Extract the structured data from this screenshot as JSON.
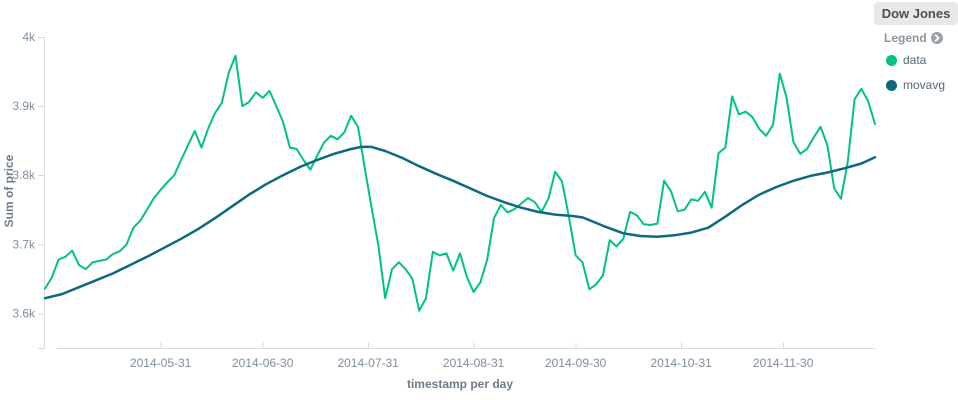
{
  "panel": {
    "title": "Dow Jones"
  },
  "legend": {
    "label": "Legend",
    "toggle_icon": "chevron-circle-right",
    "items": [
      {
        "label": "data",
        "color": "#00C383"
      },
      {
        "label": "movavg",
        "color": "#0C6A80"
      }
    ]
  },
  "chart_data": {
    "type": "line",
    "title": "Dow Jones",
    "xlabel": "timestamp per day",
    "ylabel": "Sum of price",
    "x_unit": "days since 2014-04-27, one point per day interval",
    "xlim": [
      0,
      244
    ],
    "x_tick_days": [
      34,
      64,
      95,
      126,
      156,
      187,
      217
    ],
    "x_tick_labels": [
      "2014-05-31",
      "2014-06-30",
      "2014-07-31",
      "2014-08-31",
      "2014-09-30",
      "2014-10-31",
      "2014-11-30"
    ],
    "y_tick_values": [
      4000,
      3900,
      3800,
      3700,
      3600
    ],
    "y_tick_labels": [
      "4k",
      "3.9k",
      "3.8k",
      "3.7k",
      "3.6k"
    ],
    "ylim": [
      3550,
      4000
    ],
    "grid": false,
    "legend_position": "right",
    "series": [
      {
        "name": "data",
        "color": "#00C383",
        "width": 2,
        "points": [
          [
            0,
            3636
          ],
          [
            2,
            3652
          ],
          [
            4,
            3678
          ],
          [
            6,
            3682
          ],
          [
            8,
            3691
          ],
          [
            10,
            3670
          ],
          [
            12,
            3664
          ],
          [
            14,
            3674
          ],
          [
            16,
            3676
          ],
          [
            18,
            3678
          ],
          [
            20,
            3686
          ],
          [
            22,
            3690
          ],
          [
            24,
            3700
          ],
          [
            26,
            3724
          ],
          [
            28,
            3734
          ],
          [
            30,
            3750
          ],
          [
            32,
            3767
          ],
          [
            34,
            3779
          ],
          [
            36,
            3790
          ],
          [
            38,
            3800
          ],
          [
            40,
            3822
          ],
          [
            42,
            3843
          ],
          [
            44,
            3864
          ],
          [
            46,
            3840
          ],
          [
            48,
            3868
          ],
          [
            50,
            3890
          ],
          [
            52,
            3905
          ],
          [
            54,
            3948
          ],
          [
            56,
            3973
          ],
          [
            58,
            3900
          ],
          [
            60,
            3906
          ],
          [
            62,
            3920
          ],
          [
            64,
            3912
          ],
          [
            66,
            3922
          ],
          [
            68,
            3900
          ],
          [
            70,
            3877
          ],
          [
            72,
            3840
          ],
          [
            74,
            3838
          ],
          [
            76,
            3822
          ],
          [
            78,
            3808
          ],
          [
            80,
            3828
          ],
          [
            82,
            3847
          ],
          [
            84,
            3857
          ],
          [
            86,
            3852
          ],
          [
            88,
            3862
          ],
          [
            90,
            3886
          ],
          [
            92,
            3870
          ],
          [
            94,
            3810
          ],
          [
            96,
            3753
          ],
          [
            98,
            3698
          ],
          [
            100,
            3622
          ],
          [
            102,
            3664
          ],
          [
            104,
            3674
          ],
          [
            106,
            3664
          ],
          [
            108,
            3650
          ],
          [
            110,
            3604
          ],
          [
            112,
            3622
          ],
          [
            114,
            3689
          ],
          [
            116,
            3684
          ],
          [
            118,
            3687
          ],
          [
            120,
            3662
          ],
          [
            122,
            3687
          ],
          [
            124,
            3653
          ],
          [
            126,
            3631
          ],
          [
            128,
            3645
          ],
          [
            130,
            3678
          ],
          [
            132,
            3738
          ],
          [
            134,
            3757
          ],
          [
            136,
            3746
          ],
          [
            138,
            3751
          ],
          [
            140,
            3759
          ],
          [
            142,
            3767
          ],
          [
            144,
            3761
          ],
          [
            146,
            3747
          ],
          [
            148,
            3766
          ],
          [
            150,
            3805
          ],
          [
            152,
            3791
          ],
          [
            154,
            3740
          ],
          [
            156,
            3684
          ],
          [
            158,
            3674
          ],
          [
            160,
            3635
          ],
          [
            162,
            3642
          ],
          [
            164,
            3655
          ],
          [
            166,
            3706
          ],
          [
            168,
            3697
          ],
          [
            170,
            3708
          ],
          [
            172,
            3747
          ],
          [
            174,
            3742
          ],
          [
            176,
            3729
          ],
          [
            178,
            3728
          ],
          [
            180,
            3730
          ],
          [
            182,
            3792
          ],
          [
            184,
            3777
          ],
          [
            186,
            3748
          ],
          [
            188,
            3750
          ],
          [
            190,
            3765
          ],
          [
            192,
            3763
          ],
          [
            194,
            3776
          ],
          [
            196,
            3753
          ],
          [
            198,
            3832
          ],
          [
            200,
            3840
          ],
          [
            202,
            3914
          ],
          [
            204,
            3888
          ],
          [
            206,
            3892
          ],
          [
            208,
            3884
          ],
          [
            210,
            3867
          ],
          [
            212,
            3857
          ],
          [
            214,
            3873
          ],
          [
            216,
            3947
          ],
          [
            218,
            3912
          ],
          [
            220,
            3848
          ],
          [
            222,
            3831
          ],
          [
            224,
            3838
          ],
          [
            226,
            3855
          ],
          [
            228,
            3870
          ],
          [
            230,
            3843
          ],
          [
            232,
            3781
          ],
          [
            234,
            3766
          ],
          [
            236,
            3820
          ],
          [
            238,
            3910
          ],
          [
            240,
            3925
          ],
          [
            242,
            3907
          ],
          [
            244,
            3874
          ]
        ]
      },
      {
        "name": "movavg",
        "color": "#0C6A80",
        "width": 2.5,
        "points": [
          [
            0,
            3622
          ],
          [
            5,
            3628
          ],
          [
            10,
            3638
          ],
          [
            15,
            3648
          ],
          [
            20,
            3658
          ],
          [
            25,
            3670
          ],
          [
            30,
            3682
          ],
          [
            35,
            3695
          ],
          [
            40,
            3708
          ],
          [
            45,
            3722
          ],
          [
            50,
            3738
          ],
          [
            55,
            3755
          ],
          [
            60,
            3772
          ],
          [
            65,
            3787
          ],
          [
            70,
            3800
          ],
          [
            75,
            3812
          ],
          [
            80,
            3822
          ],
          [
            85,
            3831
          ],
          [
            90,
            3838
          ],
          [
            93,
            3841
          ],
          [
            96,
            3841
          ],
          [
            100,
            3835
          ],
          [
            105,
            3825
          ],
          [
            110,
            3813
          ],
          [
            115,
            3802
          ],
          [
            120,
            3792
          ],
          [
            125,
            3781
          ],
          [
            130,
            3770
          ],
          [
            135,
            3761
          ],
          [
            140,
            3753
          ],
          [
            145,
            3747
          ],
          [
            150,
            3743
          ],
          [
            155,
            3741
          ],
          [
            158,
            3739
          ],
          [
            160,
            3735
          ],
          [
            165,
            3725
          ],
          [
            170,
            3716
          ],
          [
            175,
            3712
          ],
          [
            180,
            3711
          ],
          [
            185,
            3713
          ],
          [
            190,
            3717
          ],
          [
            195,
            3724
          ],
          [
            200,
            3740
          ],
          [
            205,
            3757
          ],
          [
            210,
            3772
          ],
          [
            215,
            3783
          ],
          [
            220,
            3792
          ],
          [
            225,
            3799
          ],
          [
            230,
            3804
          ],
          [
            235,
            3810
          ],
          [
            240,
            3817
          ],
          [
            244,
            3826
          ]
        ]
      }
    ]
  },
  "colors": {
    "axis_line": "#DCDCDC",
    "tick_mark": "#D8D8D8",
    "tick_label": "#7F8D9B",
    "axis_title": "#6E7B8A",
    "legend_text": "#5A6772",
    "legend_header": "#8C959C",
    "panel_title_bg": "#E8E8E8",
    "panel_title_text": "#4A5055"
  }
}
